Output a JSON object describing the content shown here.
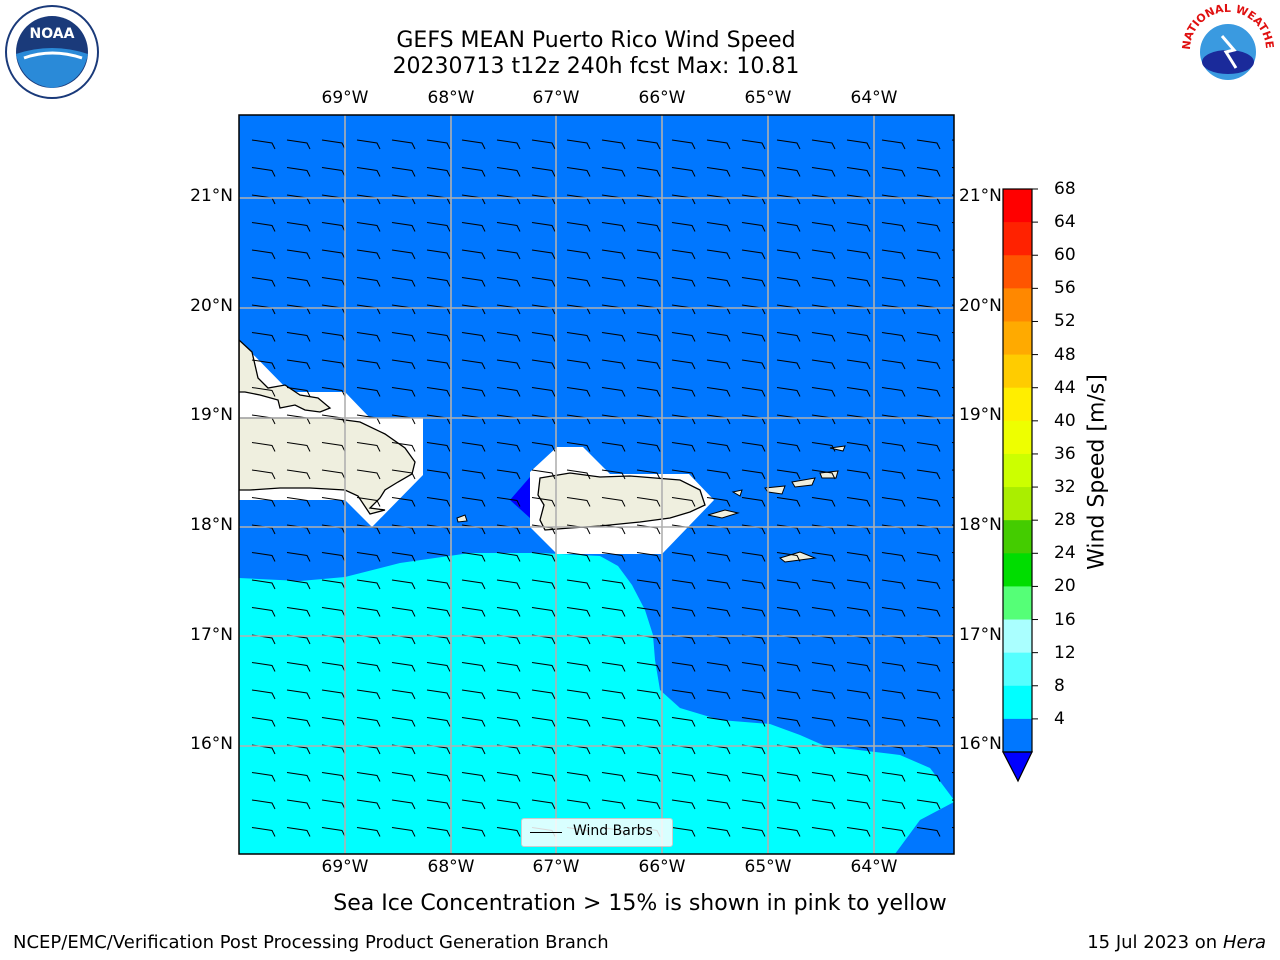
{
  "title": {
    "line1": "GEFS MEAN Puerto Rico Wind Speed",
    "line2": "20230713 t12z 240h fcst   Max: 10.81"
  },
  "lon_ticks": [
    "69°W",
    "68°W",
    "67°W",
    "66°W",
    "65°W",
    "64°W"
  ],
  "lat_ticks": [
    "21°N",
    "20°N",
    "19°N",
    "18°N",
    "17°N",
    "16°N"
  ],
  "colorbar": {
    "label": "Wind Speed [m/s]",
    "ticks": [
      "68",
      "64",
      "60",
      "56",
      "52",
      "48",
      "44",
      "40",
      "36",
      "32",
      "28",
      "24",
      "20",
      "16",
      "12",
      "8",
      "4"
    ],
    "colors": [
      "#ff0000",
      "#ff2200",
      "#ff5500",
      "#ff8800",
      "#ffaa00",
      "#ffcc00",
      "#ffee00",
      "#eeff00",
      "#ccff00",
      "#aaee00",
      "#44cc00",
      "#00dd00",
      "#55ff77",
      "#aaffff",
      "#55ffff",
      "#00ffff",
      "#0077ff"
    ],
    "under_color": "#0000ff"
  },
  "legend": {
    "label": "Wind Barbs"
  },
  "note": "Sea Ice Concentration > 15% is shown in pink to yellow",
  "footer": {
    "left": "NCEP/EMC/Verification Post Processing Product Generation Branch",
    "date": "15 Jul 2023 on ",
    "host": "Hera"
  },
  "colors": {
    "ocean_low": "#0077ff",
    "ocean_mid": "#00ffff",
    "land": "#efefdf",
    "blue_patch": "#0000ff"
  },
  "logos": {
    "left": "NOAA",
    "right": "NATIONAL WEATHER SERVICE"
  }
}
